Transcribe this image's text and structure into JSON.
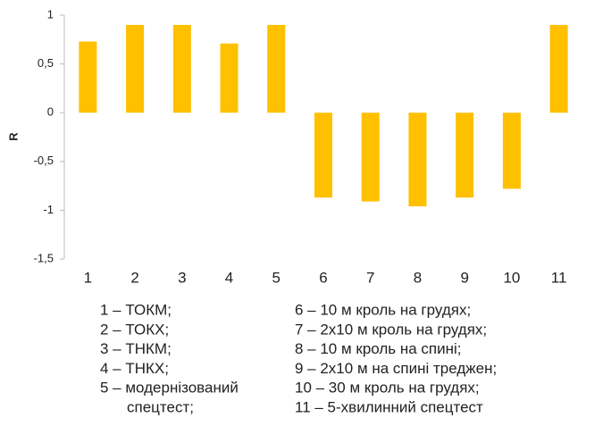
{
  "chart_data": {
    "type": "bar",
    "y_label": "R",
    "categories": [
      "1",
      "2",
      "3",
      "4",
      "5",
      "6",
      "7",
      "8",
      "9",
      "10",
      "11"
    ],
    "values": [
      0.73,
      0.9,
      0.9,
      0.71,
      0.9,
      -0.87,
      -0.91,
      -0.96,
      -0.87,
      -0.78,
      0.9
    ],
    "color": "#ffc000",
    "ylim": [
      -1.5,
      1
    ],
    "yticks": [
      1,
      {
        "value": 0.5,
        "label": "0,5"
      },
      0,
      {
        "value": -0.5,
        "label": "-0,5"
      },
      -1,
      {
        "value": -1.5,
        "label": "-1,5"
      }
    ],
    "grid": false,
    "legend_left": [
      "1 – ТОКМ;",
      "2 – ТОКХ;",
      "3 – ТНКМ;",
      "4 – ТНКХ;",
      "5 – модернізований",
      "спецтест;"
    ],
    "legend_right": [
      "6 – 10 м кроль на грудях;",
      "7 – 2х10 м кроль на грудях;",
      "8 – 10 м кроль на спині;",
      "9 – 2х10 м на спині треджен;",
      "10 – 30 м кроль на грудях;",
      "11 – 5-хвилинний спецтест"
    ]
  }
}
